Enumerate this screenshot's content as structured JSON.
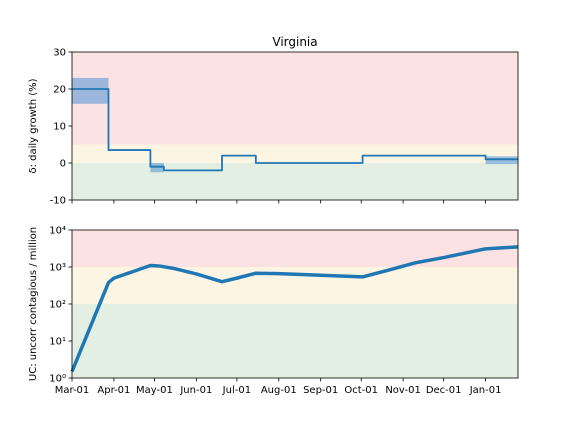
{
  "chart_data": [
    {
      "type": "line",
      "title": "Virginia",
      "ylabel": "δ: daily growth (%)",
      "ylim": [
        -10,
        30
      ],
      "yticks": [
        -10,
        0,
        10,
        20,
        30
      ],
      "xticks": [
        "Mar-01",
        "Apr-01",
        "May-01",
        "Jun-01",
        "Jul-01",
        "Aug-01",
        "Sep-01",
        "Oct-01",
        "Nov-01",
        "Dec-01",
        "Jan-01"
      ],
      "bands": [
        {
          "from": -10,
          "to": 0,
          "color": "#e3efe3"
        },
        {
          "from": 0,
          "to": 5,
          "color": "#fdf5e4"
        },
        {
          "from": 5,
          "to": 30,
          "color": "#fde2e3"
        }
      ],
      "series": [
        {
          "color": "#1f77b4",
          "step": true,
          "points": [
            {
              "x": "2020-03-01",
              "y": 20
            },
            {
              "x": "2020-03-28",
              "y": 3.5
            },
            {
              "x": "2020-04-28",
              "y": -1
            },
            {
              "x": "2020-05-08",
              "y": -2
            },
            {
              "x": "2020-06-20",
              "y": 2
            },
            {
              "x": "2020-07-15",
              "y": 0
            },
            {
              "x": "2020-10-02",
              "y": 2
            },
            {
              "x": "2021-01-01",
              "y": 1
            },
            {
              "x": "2021-01-25",
              "y": 1
            }
          ],
          "intervals": [
            {
              "from": "2020-03-01",
              "to": "2020-03-28",
              "low": 16,
              "high": 23
            },
            {
              "from": "2020-04-28",
              "to": "2020-05-08",
              "low": -2.5,
              "high": 0
            },
            {
              "from": "2021-01-01",
              "to": "2021-01-25",
              "low": -0.3,
              "high": 1.8
            }
          ]
        }
      ]
    },
    {
      "type": "line",
      "ylabel": "UC: uncorr contagious / million",
      "yscale": "log",
      "ylim": [
        1,
        10000
      ],
      "yticks": [
        1,
        10,
        100,
        1000,
        10000
      ],
      "ytick_labels": [
        "10⁰",
        "10¹",
        "10²",
        "10³",
        "10⁴"
      ],
      "xticks": [
        "Mar-01",
        "Apr-01",
        "May-01",
        "Jun-01",
        "Jul-01",
        "Aug-01",
        "Sep-01",
        "Oct-01",
        "Nov-01",
        "Dec-01",
        "Jan-01"
      ],
      "bands": [
        {
          "from": 1,
          "to": 100,
          "color": "#e3efe3"
        },
        {
          "from": 100,
          "to": 1000,
          "color": "#fdf5e4"
        },
        {
          "from": 1000,
          "to": 10000,
          "color": "#fde2e3"
        }
      ],
      "series": [
        {
          "color": "#1f77b4",
          "points": [
            {
              "x": "2020-03-01",
              "y": 1.5
            },
            {
              "x": "2020-03-28",
              "y": 380
            },
            {
              "x": "2020-04-01",
              "y": 500
            },
            {
              "x": "2020-04-15",
              "y": 750
            },
            {
              "x": "2020-04-28",
              "y": 1100
            },
            {
              "x": "2020-05-05",
              "y": 1060
            },
            {
              "x": "2020-05-15",
              "y": 920
            },
            {
              "x": "2020-06-01",
              "y": 650
            },
            {
              "x": "2020-06-20",
              "y": 400
            },
            {
              "x": "2020-07-01",
              "y": 500
            },
            {
              "x": "2020-07-15",
              "y": 680
            },
            {
              "x": "2020-08-01",
              "y": 660
            },
            {
              "x": "2020-09-01",
              "y": 600
            },
            {
              "x": "2020-10-02",
              "y": 540
            },
            {
              "x": "2020-10-20",
              "y": 800
            },
            {
              "x": "2020-11-10",
              "y": 1300
            },
            {
              "x": "2020-12-01",
              "y": 1800
            },
            {
              "x": "2021-01-01",
              "y": 3100
            },
            {
              "x": "2021-01-25",
              "y": 3500
            }
          ]
        }
      ]
    }
  ]
}
